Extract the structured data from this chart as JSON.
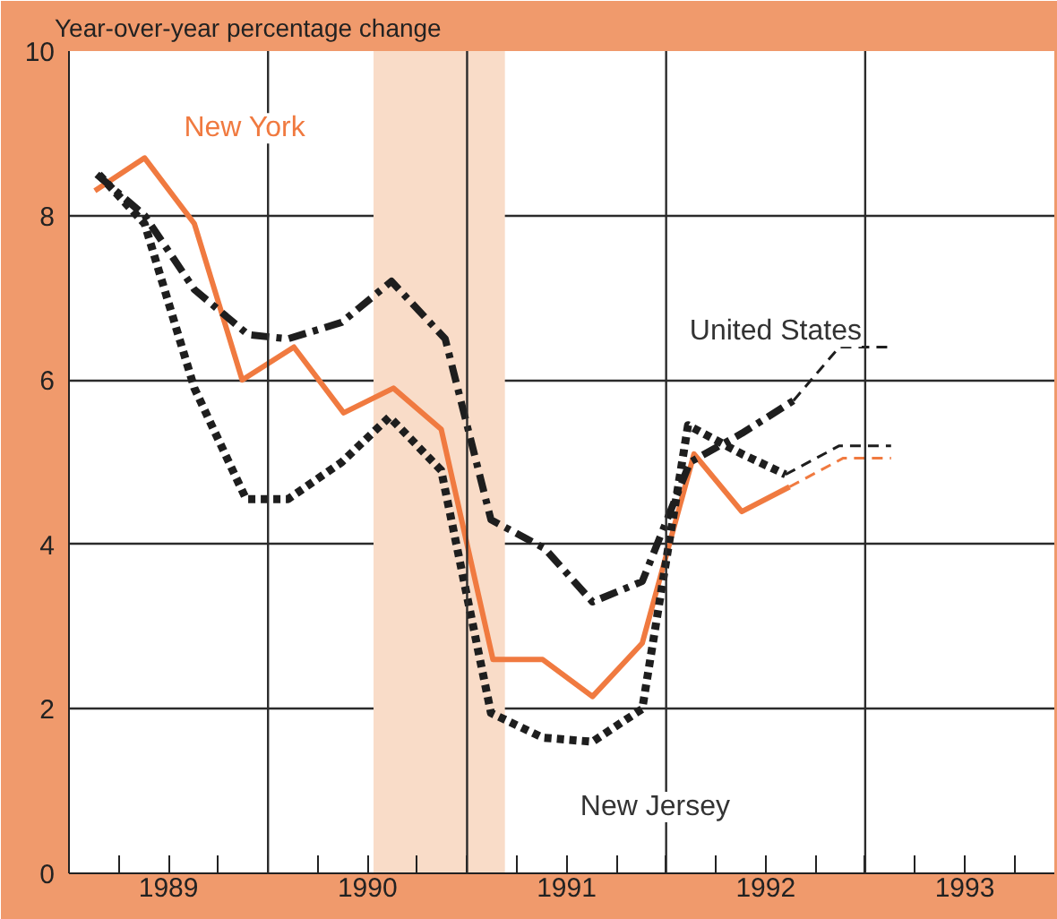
{
  "chart_data": {
    "type": "line",
    "ylabel": "Year-over-year percentage change",
    "xlim": [
      1989,
      1993.95
    ],
    "ylim": [
      0,
      10
    ],
    "xticks": [
      {
        "value": 1989,
        "label": null
      },
      {
        "value": 1989.25,
        "label": null
      },
      {
        "value": 1989.5,
        "label": "1989"
      },
      {
        "value": 1989.75,
        "label": null
      },
      {
        "value": 1990,
        "label": null
      },
      {
        "value": 1990.25,
        "label": null
      },
      {
        "value": 1990.5,
        "label": "1990"
      },
      {
        "value": 1990.75,
        "label": null
      },
      {
        "value": 1991,
        "label": null
      },
      {
        "value": 1991.25,
        "label": null
      },
      {
        "value": 1991.5,
        "label": "1991"
      },
      {
        "value": 1991.75,
        "label": null
      },
      {
        "value": 1992,
        "label": null
      },
      {
        "value": 1992.25,
        "label": null
      },
      {
        "value": 1992.5,
        "label": "1992"
      },
      {
        "value": 1992.75,
        "label": null
      },
      {
        "value": 1993,
        "label": null
      },
      {
        "value": 1993.25,
        "label": null
      },
      {
        "value": 1993.5,
        "label": "1993"
      },
      {
        "value": 1993.75,
        "label": null
      }
    ],
    "yticks": [
      0,
      2,
      4,
      6,
      8,
      10
    ],
    "grid": "y",
    "ref_lines": [
      {
        "axis": "x",
        "value": 1990,
        "color": "#2b2b2b"
      },
      {
        "axis": "x",
        "value": 1991,
        "color": "#2b2b2b"
      },
      {
        "axis": "x",
        "value": 1992,
        "color": "#2b2b2b"
      },
      {
        "axis": "x",
        "value": 1993,
        "color": "#2b2b2b"
      }
    ],
    "bands": [
      {
        "axis": "x",
        "from": 1990.53,
        "to": 1991.19,
        "color": "#f9dcc8"
      }
    ],
    "series": [
      {
        "name": "New York",
        "color": "#f07a40",
        "line_style": "solid",
        "x": [
          1989.13,
          1989.38,
          1989.63,
          1989.87,
          1990.13,
          1990.38,
          1990.63,
          1990.87,
          1991.13,
          1991.38,
          1991.63,
          1991.88,
          1992.14,
          1992.38,
          1992.62
        ],
        "values": [
          8.3,
          8.7,
          7.9,
          6.0,
          6.4,
          5.6,
          5.9,
          5.4,
          2.6,
          2.6,
          2.15,
          2.8,
          5.1,
          4.4,
          4.7
        ]
      },
      {
        "name": "United States",
        "color": "#1e1e1e",
        "line_style": "dashdot",
        "x": [
          1989.14,
          1989.38,
          1989.63,
          1989.9,
          1990.1,
          1990.37,
          1990.62,
          1990.89,
          1991.12,
          1991.39,
          1991.63,
          1991.88,
          1992.12,
          1992.38,
          1992.64
        ],
        "values": [
          8.5,
          8.0,
          7.1,
          6.55,
          6.5,
          6.7,
          7.2,
          6.5,
          4.3,
          3.95,
          3.3,
          3.55,
          5.0,
          5.35,
          5.75
        ]
      },
      {
        "name": "New Jersey",
        "color": "#1e1e1e",
        "line_style": "dotted",
        "x": [
          1989.15,
          1989.38,
          1989.63,
          1989.89,
          1990.1,
          1990.37,
          1990.61,
          1990.87,
          1991.12,
          1991.38,
          1991.63,
          1991.88,
          1992.11,
          1992.38,
          1992.6
        ],
        "values": [
          8.5,
          7.9,
          5.9,
          4.55,
          4.55,
          5.0,
          5.55,
          4.9,
          1.95,
          1.65,
          1.6,
          2.0,
          5.45,
          5.1,
          4.85
        ]
      },
      {
        "color": "#f07a40",
        "line_style": "dashed",
        "x": [
          1992.62,
          1992.89,
          1993.13
        ],
        "values": [
          4.7,
          5.05,
          5.05
        ]
      },
      {
        "color": "#1e1e1e",
        "line_style": "dashed",
        "x": [
          1992.64,
          1992.87,
          1993.13
        ],
        "values": [
          5.75,
          6.4,
          6.4
        ]
      },
      {
        "color": "#1e1e1e",
        "line_style": "dashed",
        "x": [
          1992.6,
          1992.87,
          1993.13
        ],
        "values": [
          4.85,
          5.2,
          5.2
        ]
      }
    ]
  }
}
